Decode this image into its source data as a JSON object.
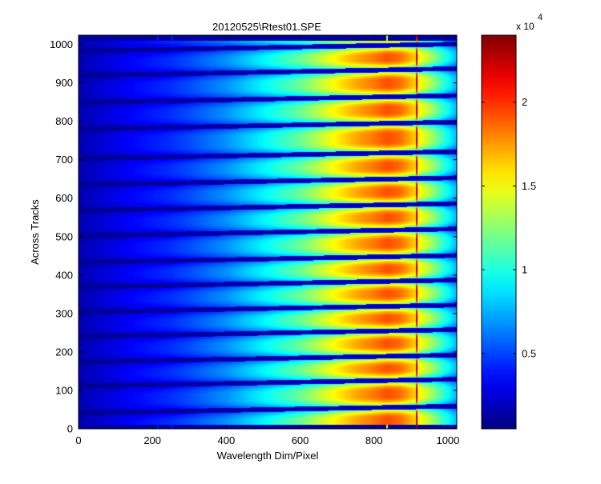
{
  "chart_data": {
    "type": "heatmap",
    "title": "20120525\\Rtest01.SPE",
    "xlabel": "Wavelength Dim/Pixel",
    "ylabel": "Across Tracks",
    "xlim": [
      0,
      1024
    ],
    "ylim": [
      0,
      1024
    ],
    "xticks": [
      0,
      200,
      400,
      600,
      800,
      1000
    ],
    "yticks": [
      0,
      100,
      200,
      300,
      400,
      500,
      600,
      700,
      800,
      900,
      1000
    ],
    "colormap": "jet",
    "colorbar": {
      "ticks": [
        0.5,
        1,
        1.5,
        2
      ],
      "min": 0.05,
      "max": 2.4,
      "multiplier_base": "x 10",
      "multiplier_exponent": "4"
    },
    "tracks": {
      "count": 15,
      "gap_centers_left": [
        42,
        112,
        175,
        241,
        305,
        370,
        434,
        503,
        569,
        636,
        704,
        781,
        850,
        920,
        984
      ],
      "gap_tilt_at_right": 18,
      "gap_half_width": 6
    },
    "intensity_profile": {
      "x": [
        0,
        150,
        250,
        300,
        400,
        500,
        600,
        650,
        700,
        750,
        800,
        835,
        870,
        900,
        950,
        1000,
        1024
      ],
      "peak": [
        0.05,
        0.13,
        0.17,
        0.2,
        0.27,
        0.37,
        0.48,
        0.56,
        0.64,
        0.71,
        0.76,
        0.8,
        0.77,
        0.7,
        0.55,
        0.38,
        0.3
      ]
    },
    "vertical_lines": [
      {
        "x": 915,
        "value": 0.92
      },
      {
        "x": 835,
        "value": 0.62
      },
      {
        "x": 213,
        "value": 0.14
      },
      {
        "x": 253,
        "value": 0.15
      }
    ]
  }
}
